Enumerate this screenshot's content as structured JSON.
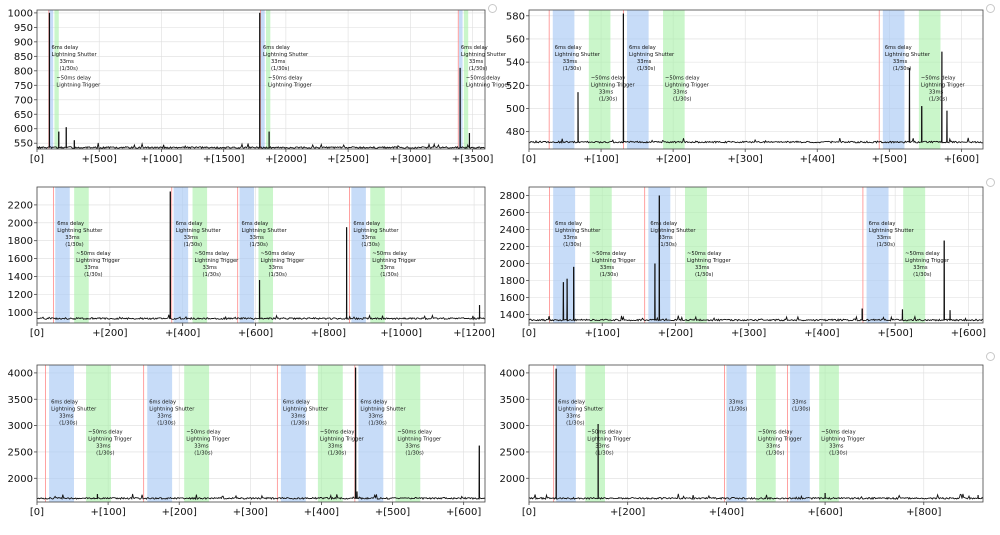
{
  "colors": {
    "line": "#111111",
    "shutter_band": "#a9c9f5",
    "trigger_band": "#a6f0a6",
    "marker": "#ff8a8a",
    "grid": "#dedede"
  },
  "chart_data": [
    {
      "type": "line",
      "panel": "top-left",
      "xlim": [
        0,
        3600
      ],
      "ylim": [
        530,
        1010
      ],
      "x_ticks": [
        0,
        500,
        1000,
        1500,
        2000,
        2500,
        3000,
        3500
      ],
      "x_tick_labels": [
        "[0]",
        "+[500]",
        "+[1000]",
        "+[1500]",
        "+[2000]",
        "+[2500]",
        "+[3000]",
        "+[3500]"
      ],
      "y_ticks": [
        550,
        600,
        650,
        700,
        750,
        800,
        850,
        900,
        950,
        1000
      ],
      "y_tick_labels": [
        "550",
        "600",
        "650",
        "700",
        "750",
        "800",
        "850",
        "900",
        "950",
        "1000"
      ],
      "baseline": 535,
      "markers": [
        95,
        1795,
        3385
      ],
      "shutter_bands": [
        [
          100,
          130
        ],
        [
          1800,
          1830
        ],
        [
          3390,
          3420
        ]
      ],
      "trigger_bands": [
        [
          140,
          175
        ],
        [
          1840,
          1875
        ],
        [
          3430,
          3465
        ]
      ],
      "shutter_labels": [
        {
          "x": 100,
          "lines": [
            "6ms delay",
            "Lightning Shutter",
            "33ms",
            "(1/30s)"
          ]
        },
        {
          "x": 1800,
          "lines": [
            "6ms delay",
            "Lightning Shutter",
            "33ms",
            "(1/30s)"
          ]
        },
        {
          "x": 3390,
          "lines": [
            "6ms delay",
            "Lightning Shutter",
            "33ms",
            "(1/30s)"
          ]
        }
      ],
      "trigger_labels": [
        {
          "x": 140,
          "lines": [
            "~50ms delay",
            "Lightning Trigger"
          ]
        },
        {
          "x": 1840,
          "lines": [
            "~50ms delay",
            "Lightning Trigger"
          ]
        },
        {
          "x": 3430,
          "lines": [
            "~50ms delay",
            "Lightning Trigger"
          ]
        }
      ],
      "spikes": [
        {
          "x": 100,
          "y": 1000
        },
        {
          "x": 175,
          "y": 590
        },
        {
          "x": 235,
          "y": 605
        },
        {
          "x": 300,
          "y": 560
        },
        {
          "x": 1790,
          "y": 1000
        },
        {
          "x": 1865,
          "y": 590
        },
        {
          "x": 3400,
          "y": 810
        },
        {
          "x": 3475,
          "y": 585
        }
      ]
    },
    {
      "type": "line",
      "panel": "top-right",
      "xlim": [
        0,
        630
      ],
      "ylim": [
        465,
        585
      ],
      "x_ticks": [
        0,
        100,
        200,
        300,
        400,
        500,
        600
      ],
      "x_tick_labels": [
        "[0]",
        "+[100]",
        "+[200]",
        "+[300]",
        "+[400]",
        "+[500]",
        "+[600]"
      ],
      "y_ticks": [
        480,
        500,
        520,
        540,
        560,
        580
      ],
      "y_tick_labels": [
        "480",
        "500",
        "520",
        "540",
        "560",
        "580"
      ],
      "baseline": 471,
      "markers": [
        28,
        131,
        486
      ],
      "shutter_bands": [
        [
          33,
          63
        ],
        [
          136,
          166
        ],
        [
          491,
          521
        ]
      ],
      "trigger_bands": [
        [
          83,
          113
        ],
        [
          186,
          216
        ],
        [
          541,
          571
        ]
      ],
      "shutter_labels": [
        {
          "x": 33,
          "lines": [
            "6ms delay",
            "Lightning Shutter",
            "33ms",
            "(1/30s)"
          ]
        },
        {
          "x": 136,
          "lines": [
            "6ms delay",
            "Lightning Shutter",
            "33ms",
            "(1/30s)"
          ]
        },
        {
          "x": 491,
          "lines": [
            "6ms delay",
            "Lightning Shutter",
            "33ms",
            "(1/30s)"
          ]
        }
      ],
      "trigger_labels": [
        {
          "x": 83,
          "lines": [
            "~50ms delay",
            "Lightning Trigger",
            "33ms",
            "(1/30s)"
          ]
        },
        {
          "x": 186,
          "lines": [
            "~50ms delay",
            "Lightning Trigger",
            "33ms",
            "(1/30s)"
          ]
        },
        {
          "x": 541,
          "lines": [
            "~50ms delay",
            "Lightning Trigger",
            "33ms",
            "(1/30s)"
          ]
        }
      ],
      "spikes": [
        {
          "x": 68,
          "y": 514
        },
        {
          "x": 131,
          "y": 582
        },
        {
          "x": 528,
          "y": 535
        },
        {
          "x": 545,
          "y": 502
        },
        {
          "x": 573,
          "y": 549
        },
        {
          "x": 580,
          "y": 498
        }
      ]
    },
    {
      "type": "line",
      "panel": "middle-left",
      "xlim": [
        0,
        1230
      ],
      "ylim": [
        880,
        2400
      ],
      "x_ticks": [
        0,
        200,
        400,
        600,
        800,
        1000,
        1200
      ],
      "x_tick_labels": [
        "[0]",
        "+[200]",
        "+[400]",
        "+[600]",
        "+[800]",
        "+[1000]",
        "+[1200]"
      ],
      "y_ticks": [
        1000,
        1200,
        1400,
        1600,
        1800,
        2000,
        2200
      ],
      "y_tick_labels": [
        "1000",
        "1200",
        "1400",
        "1600",
        "1800",
        "2000",
        "2200"
      ],
      "baseline": 930,
      "markers": [
        45,
        370,
        551,
        858
      ],
      "shutter_bands": [
        [
          50,
          90
        ],
        [
          375,
          415
        ],
        [
          556,
          596
        ],
        [
          863,
          903
        ]
      ],
      "trigger_bands": [
        [
          102,
          142
        ],
        [
          427,
          467
        ],
        [
          608,
          648
        ],
        [
          915,
          955
        ]
      ],
      "shutter_labels": [
        {
          "x": 50,
          "lines": [
            "6ms delay",
            "Lightning Shutter",
            "33ms",
            "(1/30s)"
          ]
        },
        {
          "x": 375,
          "lines": [
            "6ms delay",
            "Lightning Shutter",
            "33ms",
            "(1/30s)"
          ]
        },
        {
          "x": 556,
          "lines": [
            "6ms delay",
            "Lightning Shutter",
            "33ms",
            "(1/30s)"
          ]
        },
        {
          "x": 863,
          "lines": [
            "6ms delay",
            "Lightning Shutter",
            "33ms",
            "(1/30s)"
          ]
        }
      ],
      "trigger_labels": [
        {
          "x": 102,
          "lines": [
            "~50ms delay",
            "Lightning Trigger",
            "33ms",
            "(1/30s)"
          ]
        },
        {
          "x": 427,
          "lines": [
            "~50ms delay",
            "Lightning Trigger",
            "33ms",
            "(1/30s)"
          ]
        },
        {
          "x": 608,
          "lines": [
            "~50ms delay",
            "Lightning Trigger",
            "33ms",
            "(1/30s)"
          ]
        },
        {
          "x": 915,
          "lines": [
            "~50ms delay",
            "Lightning Trigger",
            "33ms",
            "(1/30s)"
          ]
        }
      ],
      "spikes": [
        {
          "x": 366,
          "y": 2350
        },
        {
          "x": 611,
          "y": 1360
        },
        {
          "x": 850,
          "y": 1950
        },
        {
          "x": 1215,
          "y": 1080
        }
      ]
    },
    {
      "type": "line",
      "panel": "middle-right",
      "xlim": [
        0,
        620
      ],
      "ylim": [
        1300,
        2900
      ],
      "x_ticks": [
        0,
        100,
        200,
        300,
        400,
        500,
        600
      ],
      "x_tick_labels": [
        "[0]",
        "+[100]",
        "+[200]",
        "+[300]",
        "+[400]",
        "+[500]",
        "+[600]"
      ],
      "y_ticks": [
        1400,
        1600,
        1800,
        2000,
        2200,
        2400,
        2600,
        2800
      ],
      "y_tick_labels": [
        "1400",
        "1600",
        "1800",
        "2000",
        "2200",
        "2400",
        "2600",
        "2800"
      ],
      "baseline": 1335,
      "markers": [
        28,
        158,
        456
      ],
      "shutter_bands": [
        [
          33,
          63
        ],
        [
          163,
          193
        ],
        [
          461,
          491
        ]
      ],
      "trigger_bands": [
        [
          83,
          113
        ],
        [
          213,
          243
        ],
        [
          511,
          541
        ]
      ],
      "shutter_labels": [
        {
          "x": 33,
          "lines": [
            "6ms delay",
            "Lightning Shutter",
            "33ms",
            "(1/30s)"
          ]
        },
        {
          "x": 163,
          "lines": [
            "6ms delay",
            "Lightning Shutter",
            "33ms",
            "(1/30s)"
          ]
        },
        {
          "x": 461,
          "lines": [
            "6ms delay",
            "Lightning Shutter",
            "33ms",
            "(1/30s)"
          ]
        }
      ],
      "trigger_labels": [
        {
          "x": 83,
          "lines": [
            "~50ms delay",
            "Lightning Trigger",
            "33ms",
            "(1/30s)"
          ]
        },
        {
          "x": 213,
          "lines": [
            "~50ms delay",
            "Lightning Trigger",
            "33ms",
            "(1/30s)"
          ]
        },
        {
          "x": 511,
          "lines": [
            "~50ms delay",
            "Lightning Trigger",
            "33ms",
            "(1/30s)"
          ]
        }
      ],
      "spikes": [
        {
          "x": 47,
          "y": 1780
        },
        {
          "x": 52,
          "y": 1820
        },
        {
          "x": 61,
          "y": 1960
        },
        {
          "x": 172,
          "y": 2000
        },
        {
          "x": 178,
          "y": 2800
        },
        {
          "x": 455,
          "y": 1470
        },
        {
          "x": 510,
          "y": 1460
        },
        {
          "x": 567,
          "y": 2270
        },
        {
          "x": 575,
          "y": 1450
        }
      ]
    },
    {
      "type": "line",
      "panel": "bottom-left",
      "xlim": [
        0,
        630
      ],
      "ylim": [
        1550,
        4150
      ],
      "x_ticks": [
        0,
        100,
        200,
        300,
        400,
        500,
        600
      ],
      "x_tick_labels": [
        "[0]",
        "+[100]",
        "+[200]",
        "+[300]",
        "+[400]",
        "+[500]",
        "+[600]"
      ],
      "y_ticks": [
        2000,
        2500,
        3000,
        3500,
        4000
      ],
      "y_tick_labels": [
        "2000",
        "2500",
        "3000",
        "3500",
        "4000"
      ],
      "baseline": 1620,
      "markers": [
        12,
        150,
        338,
        447
      ],
      "shutter_bands": [
        [
          17,
          52
        ],
        [
          155,
          190
        ],
        [
          343,
          378
        ],
        [
          452,
          487
        ]
      ],
      "trigger_bands": [
        [
          69,
          104
        ],
        [
          207,
          242
        ],
        [
          395,
          430
        ],
        [
          504,
          539
        ]
      ],
      "shutter_labels": [
        {
          "x": 17,
          "lines": [
            "6ms delay",
            "Lightning Shutter",
            "33ms",
            "(1/30s)"
          ]
        },
        {
          "x": 155,
          "lines": [
            "6ms delay",
            "Lightning Shutter",
            "33ms",
            "(1/30s)"
          ]
        },
        {
          "x": 343,
          "lines": [
            "6ms delay",
            "Lightning Shutter",
            "33ms",
            "(1/30s)"
          ]
        },
        {
          "x": 452,
          "lines": [
            "6ms delay",
            "Lightning Shutter",
            "33ms",
            "(1/30s)"
          ]
        }
      ],
      "trigger_labels": [
        {
          "x": 69,
          "lines": [
            "~50ms delay",
            "Lightning Trigger",
            "33ms",
            "(1/30s)"
          ]
        },
        {
          "x": 207,
          "lines": [
            "~50ms delay",
            "Lightning Trigger",
            "33ms",
            "(1/30s)"
          ]
        },
        {
          "x": 395,
          "lines": [
            "~50ms delay",
            "Lightning Trigger",
            "33ms",
            "(1/30s)"
          ]
        },
        {
          "x": 504,
          "lines": [
            "~50ms delay",
            "Lightning Trigger",
            "33ms",
            "(1/30s)"
          ]
        }
      ],
      "spikes": [
        {
          "x": 85,
          "y": 1700
        },
        {
          "x": 448,
          "y": 4100
        },
        {
          "x": 450,
          "y": 1750
        },
        {
          "x": 622,
          "y": 2620
        }
      ]
    },
    {
      "type": "line",
      "panel": "bottom-right",
      "xlim": [
        0,
        920
      ],
      "ylim": [
        1550,
        4150
      ],
      "x_ticks": [
        0,
        200,
        400,
        600,
        800
      ],
      "x_tick_labels": [
        "[0]",
        "+[200]",
        "+[400]",
        "+[600]",
        "+[800]"
      ],
      "y_ticks": [
        2000,
        2500,
        3000,
        3500,
        4000
      ],
      "y_tick_labels": [
        "2000",
        "2500",
        "3000",
        "3500",
        "4000"
      ],
      "baseline": 1620,
      "markers": [
        50,
        396,
        524
      ],
      "shutter_bands": [
        [
          55,
          95
        ],
        [
          401,
          441
        ],
        [
          529,
          569
        ]
      ],
      "trigger_bands": [
        [
          114,
          154
        ],
        [
          460,
          500
        ],
        [
          588,
          628
        ]
      ],
      "shutter_labels": [
        {
          "x": 55,
          "lines": [
            "6ms delay",
            "Lightning Shutter",
            "33ms",
            "(1/30s)"
          ]
        },
        {
          "x": 401,
          "lines": [
            "33ms",
            "(1/30s)"
          ]
        },
        {
          "x": 529,
          "lines": [
            "33ms",
            "(1/30s)"
          ]
        }
      ],
      "trigger_labels": [
        {
          "x": 114,
          "lines": [
            "~50ms delay",
            "Lightning Trigger",
            "33ms",
            "(1/30s)"
          ]
        },
        {
          "x": 460,
          "lines": [
            "~50ms delay",
            "Lightning Trigger",
            "33ms",
            "(1/30s)"
          ]
        },
        {
          "x": 588,
          "lines": [
            "~50ms delay",
            "Lightning Trigger",
            "33ms",
            "(1/30s)"
          ]
        }
      ],
      "spikes": [
        {
          "x": 55,
          "y": 4080
        },
        {
          "x": 140,
          "y": 3030
        },
        {
          "x": 600,
          "y": 1720
        },
        {
          "x": 910,
          "y": 1680
        }
      ]
    }
  ]
}
